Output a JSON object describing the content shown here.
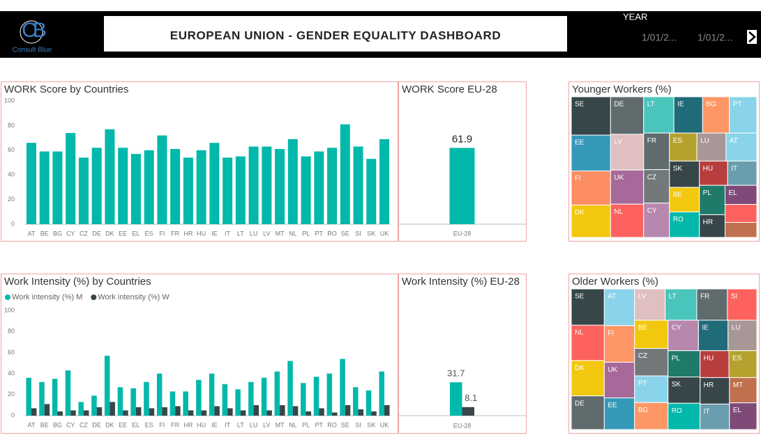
{
  "header": {
    "logo_mark": "CB",
    "logo_name": "Consult Blue",
    "title": "EUROPEAN UNION - GENDER EQUALITY DASHBOARD",
    "slicer_label": "YEAR",
    "slicer_from": "1/01/2...",
    "slicer_to": "1/01/2..."
  },
  "chart_data": [
    {
      "type": "bar",
      "title": "WORK Score by Countries",
      "categories": [
        "AT",
        "BE",
        "BG",
        "CY",
        "CZ",
        "DE",
        "DK",
        "EE",
        "EL",
        "ES",
        "FI",
        "FR",
        "HR",
        "HU",
        "IE",
        "IT",
        "LT",
        "LU",
        "LV",
        "MT",
        "NL",
        "PL",
        "PT",
        "RO",
        "SE",
        "SI",
        "SK",
        "UK"
      ],
      "values": [
        66,
        59,
        59,
        74,
        54,
        62,
        77,
        62,
        57,
        60,
        72,
        61,
        54,
        60,
        66,
        54,
        55,
        63,
        63,
        61,
        69,
        55,
        59,
        62,
        81,
        63,
        53,
        69
      ],
      "color": "#01B8AA",
      "ylim": [
        0,
        100
      ],
      "yticks": [
        0,
        20,
        40,
        60,
        80,
        100
      ]
    },
    {
      "type": "bar",
      "title": "WORK Score EU-28",
      "categories": [
        "EU-28"
      ],
      "values": [
        61.9
      ],
      "color": "#01B8AA",
      "ylim": [
        0,
        100
      ],
      "data_labels": true
    },
    {
      "type": "bar",
      "title": "Work Intensity (%) by Countries",
      "categories": [
        "AT",
        "BE",
        "BG",
        "CY",
        "CZ",
        "DE",
        "DK",
        "EE",
        "EL",
        "ES",
        "FI",
        "FR",
        "HR",
        "HU",
        "IE",
        "IT",
        "LT",
        "LU",
        "LV",
        "MT",
        "NL",
        "PL",
        "PT",
        "RO",
        "SE",
        "SI",
        "SK",
        "UK"
      ],
      "series": [
        {
          "name": "Work intensity (%) M",
          "color": "#01B8AA",
          "values": [
            36,
            32,
            35,
            43,
            13,
            19,
            57,
            27,
            26,
            32,
            40,
            23,
            23,
            34,
            40,
            30,
            25,
            32,
            36,
            42,
            52,
            31,
            37,
            40,
            54,
            27,
            24,
            42
          ]
        },
        {
          "name": "Work intensity (%) W",
          "color": "#374649",
          "values": [
            7,
            11,
            4,
            5,
            5,
            8,
            13,
            5,
            8,
            7,
            8,
            9,
            5,
            5,
            9,
            7,
            5,
            10,
            5,
            10,
            9,
            4,
            7,
            3,
            10,
            6,
            4,
            10
          ]
        }
      ],
      "ylim": [
        0,
        100
      ],
      "yticks": [
        0,
        20,
        40,
        60,
        80,
        100
      ],
      "legend": "top-left"
    },
    {
      "type": "bar",
      "title": "Work Intensity (%) EU-28",
      "categories": [
        "EU-28"
      ],
      "series": [
        {
          "name": "Work intensity (%) M",
          "color": "#01B8AA",
          "values": [
            31.7
          ]
        },
        {
          "name": "Work intensity (%) W",
          "color": "#374649",
          "values": [
            8.1
          ]
        }
      ],
      "ylim": [
        0,
        100
      ],
      "data_labels": true,
      "legend": false
    },
    {
      "type": "treemap",
      "title": "Younger Workers (%)",
      "categories": [
        "SE",
        "EE",
        "FI",
        "DK",
        "DE",
        "LV",
        "UK",
        "NL",
        "LT",
        "IE",
        "BG",
        "PT",
        "FR",
        "CZ",
        "CY",
        "ES",
        "LU",
        "AT",
        "SK",
        "BE",
        "RO",
        "HU",
        "IT",
        "PL",
        "HR",
        "EL",
        null,
        null
      ],
      "values": [
        3105,
        2898,
        2760,
        2622,
        2553,
        2436,
        2320,
        2262,
        2262,
        2146,
        1998,
        2052,
        1944,
        1782,
        1824,
        1584,
        1680,
        1776,
        1617,
        1519,
        1568,
        1410,
        1457,
        1551,
        1200,
        1250,
        1176,
        980
      ],
      "colors": [
        "#374649",
        "#3599B8",
        "#FD8D62",
        "#F2C80F",
        "#5F6B6D",
        "#DFBFBF",
        "#A66999",
        "#FD625E",
        "#4AC5BB",
        "#1F6B7A",
        "#FE9666",
        "#8AD4EB",
        "#5F6B6D",
        "#73797B",
        "#B887AD",
        "#B5A22E",
        "#A89797",
        "#8AD4EB",
        "#374649",
        "#F2C80F",
        "#01B8AA",
        "#B83E3E",
        "#6A9DAE",
        "#1F7A6A",
        "#374649",
        "#7F4A78",
        "#FD625E",
        "#C0704E"
      ]
    },
    {
      "type": "treemap",
      "title": "Older Workers (%)",
      "categories": [
        "SE",
        "NL",
        "DK",
        "DE",
        "AT",
        "FI",
        "UK",
        "EE",
        "LV",
        "LT",
        "FR",
        "SI",
        "BE",
        "CZ",
        "PT",
        "BG",
        "CY",
        "IE",
        "LU",
        "PL",
        "SK",
        "RO",
        "HU",
        "ES",
        "HR",
        "IT",
        "MT",
        "EL"
      ],
      "values": [
        2436,
        2378,
        2378,
        2262,
        2262,
        2257,
        2196,
        1952,
        1952,
        2013,
        1952,
        1872,
        1924,
        1872,
        1820,
        1836,
        1887,
        1836,
        1785,
        1716,
        1716,
        1716,
        1581,
        1530,
        1581,
        1525,
        1403,
        1488
      ],
      "colors": [
        "#374649",
        "#FD625E",
        "#F2C80F",
        "#5F6B6D",
        "#8AD4EB",
        "#FE9666",
        "#A66999",
        "#3599B8",
        "#DFBFBF",
        "#4AC5BB",
        "#5F6B6D",
        "#FD625E",
        "#F2C80F",
        "#73797B",
        "#8AD4EB",
        "#FE9666",
        "#B887AD",
        "#1F6B7A",
        "#A89797",
        "#1F7A6A",
        "#374649",
        "#01B8AA",
        "#B83E3E",
        "#B5A22E",
        "#374649",
        "#6A9DAE",
        "#C0704E",
        "#7F4A78"
      ]
    }
  ]
}
